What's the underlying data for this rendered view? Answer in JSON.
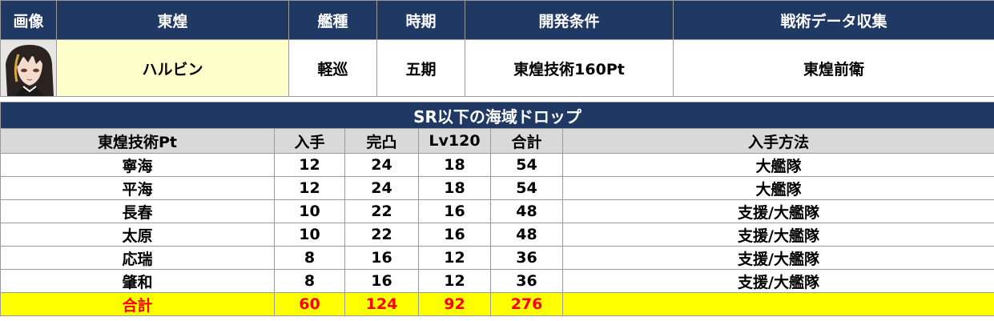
{
  "info": {
    "headers": [
      "画像",
      "東煌",
      "艦種",
      "時期",
      "開発条件",
      "戦術データ収集"
    ],
    "name": "ハルビン",
    "ship_type": "軽巡",
    "period": "五期",
    "dev_condition": "東煌技術160Pt",
    "tactical_data": "東煌前衛",
    "portrait": "character-portrait"
  },
  "drop": {
    "title": "SR以下の海域ドロップ",
    "columns": [
      "東煌技術Pt",
      "入手",
      "完凸",
      "Lv120",
      "合計",
      "入手方法"
    ],
    "rows": [
      [
        "寧海",
        "12",
        "24",
        "18",
        "54",
        "大艦隊"
      ],
      [
        "平海",
        "12",
        "24",
        "18",
        "54",
        "大艦隊"
      ],
      [
        "長春",
        "10",
        "22",
        "16",
        "48",
        "支援/大艦隊"
      ],
      [
        "太原",
        "10",
        "22",
        "16",
        "48",
        "支援/大艦隊"
      ],
      [
        "応瑞",
        "8",
        "16",
        "12",
        "36",
        "支援/大艦隊"
      ],
      [
        "肇和",
        "8",
        "16",
        "12",
        "36",
        "支援/大艦隊"
      ]
    ],
    "total": [
      "合計",
      "60",
      "124",
      "92",
      "276",
      ""
    ]
  },
  "colors": {
    "header_bg": "#1f3864",
    "name_bg": "#ffffcc",
    "colhdr_bg": "#d9d9d9",
    "total_bg": "#ffff00",
    "total_text": "#ff0000"
  }
}
